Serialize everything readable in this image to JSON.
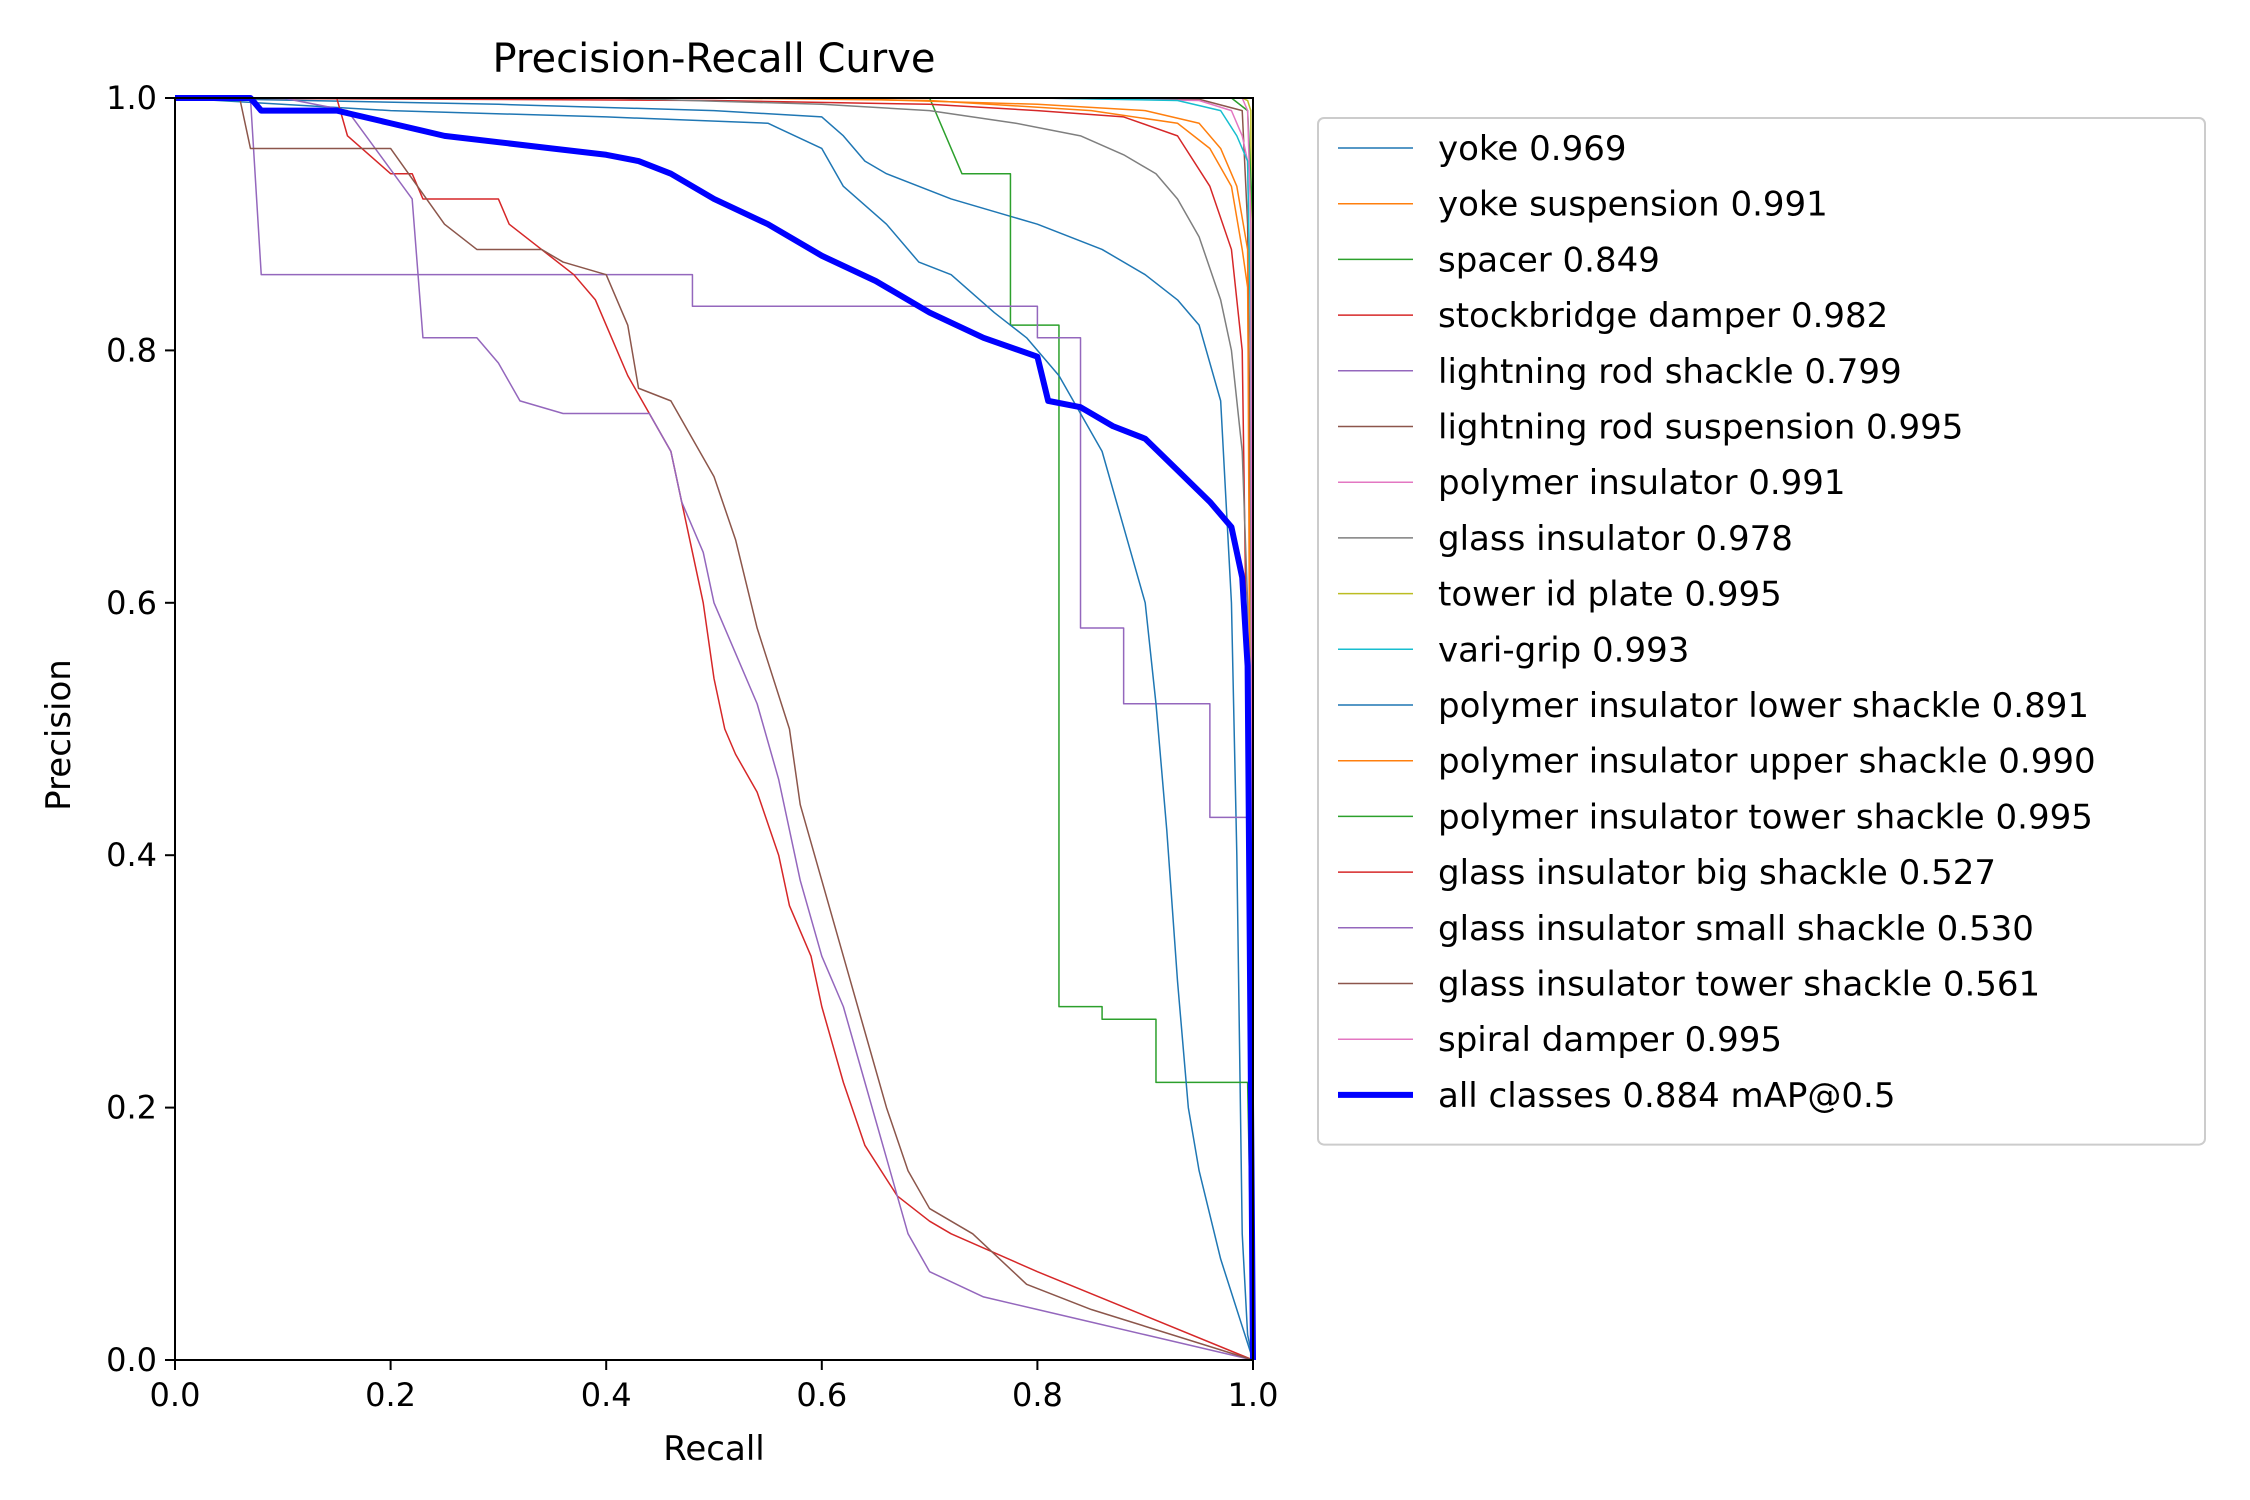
{
  "chart_data": {
    "type": "line",
    "title": "Precision-Recall Curve",
    "xlabel": "Recall",
    "ylabel": "Precision",
    "xlim": [
      0.0,
      1.0
    ],
    "ylim": [
      0.0,
      1.0
    ],
    "xticks": [
      "0.0",
      "0.2",
      "0.4",
      "0.6",
      "0.8",
      "1.0"
    ],
    "yticks": [
      "0.0",
      "0.2",
      "0.4",
      "0.6",
      "0.8",
      "1.0"
    ],
    "grid": false,
    "legend_position": "outside-right",
    "series": [
      {
        "name": "yoke 0.969",
        "color": "#1f77b4",
        "width": 1.5,
        "points": [
          [
            0,
            1
          ],
          [
            0.3,
            0.995
          ],
          [
            0.5,
            0.99
          ],
          [
            0.6,
            0.985
          ],
          [
            0.62,
            0.97
          ],
          [
            0.64,
            0.95
          ],
          [
            0.66,
            0.94
          ],
          [
            0.72,
            0.92
          ],
          [
            0.8,
            0.9
          ],
          [
            0.86,
            0.88
          ],
          [
            0.9,
            0.86
          ],
          [
            0.93,
            0.84
          ],
          [
            0.95,
            0.82
          ],
          [
            0.97,
            0.76
          ],
          [
            0.98,
            0.6
          ],
          [
            0.985,
            0.4
          ],
          [
            0.99,
            0.1
          ],
          [
            0.995,
            0.02
          ],
          [
            1,
            0.0
          ]
        ]
      },
      {
        "name": "yoke suspension 0.991",
        "color": "#ff7f0e",
        "width": 1.5,
        "points": [
          [
            0,
            1
          ],
          [
            0.5,
            1
          ],
          [
            0.7,
            0.998
          ],
          [
            0.85,
            0.99
          ],
          [
            0.93,
            0.98
          ],
          [
            0.96,
            0.96
          ],
          [
            0.98,
            0.93
          ],
          [
            0.99,
            0.88
          ],
          [
            0.995,
            0.85
          ],
          [
            0.998,
            0.6
          ],
          [
            1,
            0.0
          ]
        ]
      },
      {
        "name": "spacer 0.849",
        "color": "#2ca02c",
        "width": 1.5,
        "points": [
          [
            0,
            1
          ],
          [
            0.7,
            1
          ],
          [
            0.73,
            0.94
          ],
          [
            0.775,
            0.94
          ],
          [
            0.775,
            0.82
          ],
          [
            0.82,
            0.82
          ],
          [
            0.82,
            0.28
          ],
          [
            0.86,
            0.28
          ],
          [
            0.86,
            0.27
          ],
          [
            0.91,
            0.27
          ],
          [
            0.91,
            0.22
          ],
          [
            0.995,
            0.22
          ],
          [
            1,
            0.0
          ]
        ]
      },
      {
        "name": "stockbridge damper 0.982",
        "color": "#d62728",
        "width": 1.5,
        "points": [
          [
            0,
            1
          ],
          [
            0.5,
            0.998
          ],
          [
            0.7,
            0.995
          ],
          [
            0.8,
            0.99
          ],
          [
            0.88,
            0.985
          ],
          [
            0.93,
            0.97
          ],
          [
            0.96,
            0.93
          ],
          [
            0.98,
            0.88
          ],
          [
            0.99,
            0.8
          ],
          [
            0.995,
            0.5
          ],
          [
            1,
            0.0
          ]
        ]
      },
      {
        "name": "lightning rod shackle 0.799",
        "color": "#9467bd",
        "width": 1.5,
        "points": [
          [
            0,
            1
          ],
          [
            0.07,
            1
          ],
          [
            0.08,
            0.86
          ],
          [
            0.48,
            0.86
          ],
          [
            0.48,
            0.835
          ],
          [
            0.8,
            0.835
          ],
          [
            0.8,
            0.81
          ],
          [
            0.84,
            0.81
          ],
          [
            0.84,
            0.58
          ],
          [
            0.88,
            0.58
          ],
          [
            0.88,
            0.52
          ],
          [
            0.96,
            0.52
          ],
          [
            0.96,
            0.43
          ],
          [
            0.995,
            0.43
          ],
          [
            1,
            0.0
          ]
        ]
      },
      {
        "name": "lightning rod suspension 0.995",
        "color": "#8c564b",
        "width": 1.5,
        "points": [
          [
            0,
            1
          ],
          [
            0.8,
            1
          ],
          [
            0.95,
            0.999
          ],
          [
            0.99,
            0.99
          ],
          [
            0.995,
            0.9
          ],
          [
            0.998,
            0.66
          ],
          [
            1,
            0.0
          ]
        ]
      },
      {
        "name": "polymer insulator 0.991",
        "color": "#e377c2",
        "width": 1.5,
        "points": [
          [
            0,
            1
          ],
          [
            0.8,
            1
          ],
          [
            0.95,
            0.998
          ],
          [
            0.98,
            0.99
          ],
          [
            0.99,
            0.97
          ],
          [
            0.995,
            0.95
          ],
          [
            0.998,
            0.8
          ],
          [
            1,
            0.0
          ]
        ]
      },
      {
        "name": "glass insulator 0.978",
        "color": "#7f7f7f",
        "width": 1.5,
        "points": [
          [
            0,
            1
          ],
          [
            0.4,
            1
          ],
          [
            0.6,
            0.995
          ],
          [
            0.7,
            0.99
          ],
          [
            0.78,
            0.98
          ],
          [
            0.84,
            0.97
          ],
          [
            0.88,
            0.955
          ],
          [
            0.91,
            0.94
          ],
          [
            0.93,
            0.92
          ],
          [
            0.95,
            0.89
          ],
          [
            0.97,
            0.84
          ],
          [
            0.98,
            0.8
          ],
          [
            0.99,
            0.72
          ],
          [
            0.995,
            0.6
          ],
          [
            1,
            0.0
          ]
        ]
      },
      {
        "name": "tower id plate 0.995",
        "color": "#bcbd22",
        "width": 1.5,
        "points": [
          [
            0,
            1
          ],
          [
            0.99,
            1
          ],
          [
            0.995,
            0.998
          ],
          [
            0.998,
            0.99
          ],
          [
            1,
            0.0
          ]
        ]
      },
      {
        "name": "vari-grip 0.993",
        "color": "#17becf",
        "width": 1.5,
        "points": [
          [
            0,
            1
          ],
          [
            0.8,
            1
          ],
          [
            0.93,
            0.998
          ],
          [
            0.97,
            0.99
          ],
          [
            0.985,
            0.97
          ],
          [
            0.995,
            0.95
          ],
          [
            0.998,
            0.8
          ],
          [
            1,
            0.0
          ]
        ]
      },
      {
        "name": "polymer insulator lower shackle 0.891",
        "color": "#1f77b4",
        "width": 1.5,
        "points": [
          [
            0,
            1
          ],
          [
            0.2,
            0.99
          ],
          [
            0.4,
            0.985
          ],
          [
            0.55,
            0.98
          ],
          [
            0.6,
            0.96
          ],
          [
            0.62,
            0.93
          ],
          [
            0.66,
            0.9
          ],
          [
            0.69,
            0.87
          ],
          [
            0.72,
            0.86
          ],
          [
            0.76,
            0.83
          ],
          [
            0.79,
            0.81
          ],
          [
            0.82,
            0.78
          ],
          [
            0.86,
            0.72
          ],
          [
            0.88,
            0.66
          ],
          [
            0.9,
            0.6
          ],
          [
            0.91,
            0.52
          ],
          [
            0.92,
            0.42
          ],
          [
            0.93,
            0.3
          ],
          [
            0.94,
            0.2
          ],
          [
            0.95,
            0.15
          ],
          [
            0.97,
            0.08
          ],
          [
            1,
            0.0
          ]
        ]
      },
      {
        "name": "polymer insulator upper shackle 0.990",
        "color": "#ff7f0e",
        "width": 1.5,
        "points": [
          [
            0,
            1
          ],
          [
            0.6,
            1
          ],
          [
            0.8,
            0.995
          ],
          [
            0.9,
            0.99
          ],
          [
            0.95,
            0.98
          ],
          [
            0.97,
            0.96
          ],
          [
            0.985,
            0.93
          ],
          [
            0.995,
            0.88
          ],
          [
            1,
            0.0
          ]
        ]
      },
      {
        "name": "polymer insulator tower shackle 0.995",
        "color": "#2ca02c",
        "width": 1.5,
        "points": [
          [
            0,
            1
          ],
          [
            0.98,
            1
          ],
          [
            0.995,
            0.99
          ],
          [
            1,
            0.9
          ],
          [
            1,
            0.0
          ]
        ]
      },
      {
        "name": "glass insulator big shackle 0.527",
        "color": "#d62728",
        "width": 1.5,
        "points": [
          [
            0,
            1
          ],
          [
            0.15,
            1
          ],
          [
            0.16,
            0.97
          ],
          [
            0.2,
            0.94
          ],
          [
            0.22,
            0.94
          ],
          [
            0.23,
            0.92
          ],
          [
            0.3,
            0.92
          ],
          [
            0.31,
            0.9
          ],
          [
            0.34,
            0.88
          ],
          [
            0.37,
            0.86
          ],
          [
            0.39,
            0.84
          ],
          [
            0.4,
            0.82
          ],
          [
            0.42,
            0.78
          ],
          [
            0.44,
            0.75
          ],
          [
            0.46,
            0.72
          ],
          [
            0.47,
            0.68
          ],
          [
            0.48,
            0.64
          ],
          [
            0.49,
            0.6
          ],
          [
            0.5,
            0.54
          ],
          [
            0.51,
            0.5
          ],
          [
            0.52,
            0.48
          ],
          [
            0.54,
            0.45
          ],
          [
            0.56,
            0.4
          ],
          [
            0.57,
            0.36
          ],
          [
            0.59,
            0.32
          ],
          [
            0.6,
            0.28
          ],
          [
            0.62,
            0.22
          ],
          [
            0.64,
            0.17
          ],
          [
            0.67,
            0.13
          ],
          [
            0.7,
            0.11
          ],
          [
            0.72,
            0.1
          ],
          [
            0.8,
            0.07
          ],
          [
            1,
            0.0
          ]
        ]
      },
      {
        "name": "glass insulator small shackle 0.530",
        "color": "#9467bd",
        "width": 1.5,
        "points": [
          [
            0,
            1
          ],
          [
            0.1,
            1
          ],
          [
            0.16,
            0.99
          ],
          [
            0.22,
            0.92
          ],
          [
            0.23,
            0.81
          ],
          [
            0.28,
            0.81
          ],
          [
            0.3,
            0.79
          ],
          [
            0.32,
            0.76
          ],
          [
            0.36,
            0.75
          ],
          [
            0.44,
            0.75
          ],
          [
            0.46,
            0.72
          ],
          [
            0.47,
            0.68
          ],
          [
            0.49,
            0.64
          ],
          [
            0.5,
            0.6
          ],
          [
            0.52,
            0.56
          ],
          [
            0.54,
            0.52
          ],
          [
            0.56,
            0.46
          ],
          [
            0.58,
            0.38
          ],
          [
            0.6,
            0.32
          ],
          [
            0.62,
            0.28
          ],
          [
            0.64,
            0.22
          ],
          [
            0.66,
            0.16
          ],
          [
            0.68,
            0.1
          ],
          [
            0.7,
            0.07
          ],
          [
            0.75,
            0.05
          ],
          [
            0.8,
            0.04
          ],
          [
            0.85,
            0.03
          ],
          [
            0.9,
            0.02
          ],
          [
            1,
            0.0
          ]
        ]
      },
      {
        "name": "glass insulator tower shackle 0.561",
        "color": "#8c564b",
        "width": 1.5,
        "points": [
          [
            0,
            1
          ],
          [
            0.06,
            1
          ],
          [
            0.07,
            0.96
          ],
          [
            0.2,
            0.96
          ],
          [
            0.25,
            0.9
          ],
          [
            0.28,
            0.88
          ],
          [
            0.34,
            0.88
          ],
          [
            0.36,
            0.87
          ],
          [
            0.4,
            0.86
          ],
          [
            0.42,
            0.82
          ],
          [
            0.43,
            0.77
          ],
          [
            0.46,
            0.76
          ],
          [
            0.48,
            0.73
          ],
          [
            0.5,
            0.7
          ],
          [
            0.52,
            0.65
          ],
          [
            0.54,
            0.58
          ],
          [
            0.57,
            0.5
          ],
          [
            0.58,
            0.44
          ],
          [
            0.6,
            0.38
          ],
          [
            0.62,
            0.32
          ],
          [
            0.64,
            0.26
          ],
          [
            0.66,
            0.2
          ],
          [
            0.68,
            0.15
          ],
          [
            0.7,
            0.12
          ],
          [
            0.74,
            0.1
          ],
          [
            0.79,
            0.06
          ],
          [
            0.85,
            0.04
          ],
          [
            1,
            0.0
          ]
        ]
      },
      {
        "name": "spiral damper 0.995",
        "color": "#e377c2",
        "width": 1.5,
        "points": [
          [
            0,
            1
          ],
          [
            0.99,
            1
          ],
          [
            0.995,
            0.99
          ],
          [
            0.998,
            0.9
          ],
          [
            1,
            0.0
          ]
        ]
      },
      {
        "name": "all classes 0.884 mAP@0.5",
        "color": "#0000ff",
        "width": 6,
        "points": [
          [
            0,
            1
          ],
          [
            0.07,
            1
          ],
          [
            0.08,
            0.99
          ],
          [
            0.15,
            0.99
          ],
          [
            0.2,
            0.98
          ],
          [
            0.25,
            0.97
          ],
          [
            0.3,
            0.965
          ],
          [
            0.35,
            0.96
          ],
          [
            0.4,
            0.955
          ],
          [
            0.43,
            0.95
          ],
          [
            0.46,
            0.94
          ],
          [
            0.5,
            0.92
          ],
          [
            0.55,
            0.9
          ],
          [
            0.6,
            0.875
          ],
          [
            0.65,
            0.855
          ],
          [
            0.7,
            0.83
          ],
          [
            0.75,
            0.81
          ],
          [
            0.8,
            0.795
          ],
          [
            0.81,
            0.76
          ],
          [
            0.84,
            0.755
          ],
          [
            0.87,
            0.74
          ],
          [
            0.9,
            0.73
          ],
          [
            0.93,
            0.705
          ],
          [
            0.96,
            0.68
          ],
          [
            0.98,
            0.66
          ],
          [
            0.99,
            0.62
          ],
          [
            0.995,
            0.55
          ],
          [
            1,
            0.0
          ]
        ]
      }
    ]
  }
}
